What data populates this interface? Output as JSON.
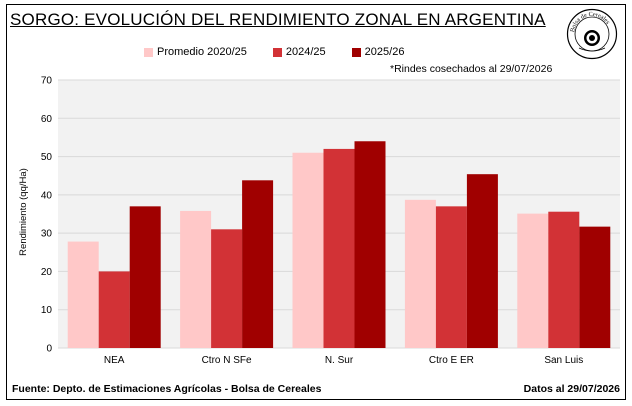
{
  "header": {
    "title": "SORGO: EVOLUCIÓN DEL RENDIMIENTO ZONAL EN ARGENTINA",
    "note": "*Rindes cosechados al 29/07/2026",
    "seal_text": "Bolsa de Cereales"
  },
  "footer": {
    "source": "Fuente: Depto. de Estimaciones Agrícolas - Bolsa de Cereales",
    "date": "Datos al 29/07/2026"
  },
  "colors": {
    "promedio": "#ffc8c8",
    "y2024": "#d23236",
    "y2025": "#a00000",
    "grid": "#d9d9d9",
    "plot_bg": "#f2f2f2"
  },
  "chart_data": {
    "type": "bar",
    "title": "SORGO: EVOLUCIÓN DEL RENDIMIENTO ZONAL EN ARGENTINA",
    "xlabel": "",
    "ylabel": "Rendimiento (qq/Ha)",
    "ylim": [
      0,
      70
    ],
    "yticks": [
      "0",
      "10",
      "20",
      "30",
      "40",
      "50",
      "60",
      "70"
    ],
    "grid": true,
    "legend_position": "top",
    "categories": [
      "NEA",
      "Ctro N SFe",
      "N. Sur",
      "Ctro E ER",
      "San Luis"
    ],
    "series": [
      {
        "name": "Promedio 2020/25",
        "values": [
          27.8,
          35.8,
          51.0,
          38.7,
          35.1
        ]
      },
      {
        "name": "2024/25",
        "values": [
          20.0,
          31.0,
          52.0,
          37.0,
          35.6
        ]
      },
      {
        "name": "2025/26",
        "values": [
          37.0,
          43.8,
          54.0,
          45.4,
          31.7
        ]
      }
    ]
  }
}
